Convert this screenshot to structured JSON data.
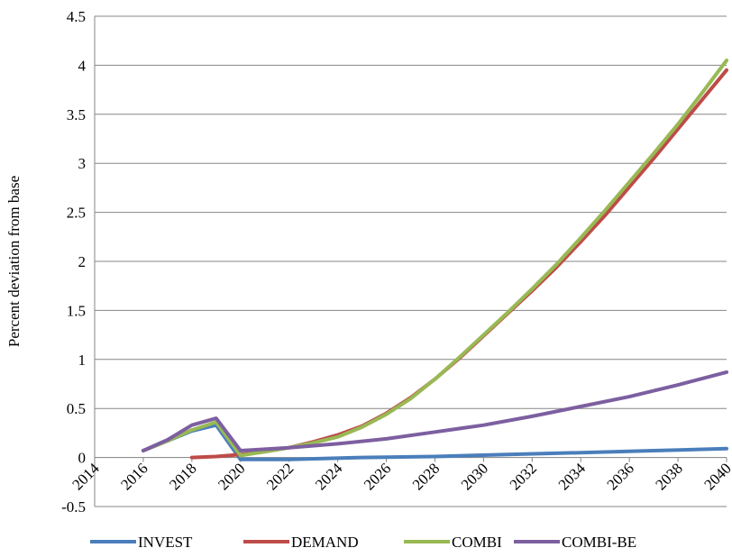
{
  "chart_data": {
    "type": "line",
    "title": "",
    "xlabel": "",
    "ylabel": "Percent deviation from base",
    "xlim": [
      2014,
      2040
    ],
    "ylim": [
      -0.5,
      4.5
    ],
    "x_ticks": [
      "2014",
      "2016",
      "2018",
      "2020",
      "2022",
      "2024",
      "2026",
      "2028",
      "2030",
      "2032",
      "2034",
      "2036",
      "2038",
      "2040"
    ],
    "y_ticks": [
      "-0.5",
      "0",
      "0.5",
      "1",
      "1.5",
      "2",
      "2.5",
      "3",
      "3.5",
      "4",
      "4.5"
    ],
    "grid": "horizontal",
    "legend_position": "bottom",
    "series": [
      {
        "name": "INVEST",
        "color": "#4a7ebb",
        "x": [
          2016,
          2017,
          2018,
          2019,
          2020,
          2022,
          2025,
          2028,
          2031,
          2034,
          2037,
          2040
        ],
        "y": [
          0.07,
          0.17,
          0.27,
          0.33,
          -0.02,
          -0.02,
          0.0,
          0.01,
          0.03,
          0.05,
          0.07,
          0.09
        ]
      },
      {
        "name": "DEMAND",
        "color": "#be4b48",
        "x": [
          2018,
          2019,
          2020,
          2021,
          2022,
          2023,
          2024,
          2025,
          2026,
          2027,
          2028,
          2029,
          2030,
          2031,
          2032,
          2033,
          2034,
          2035,
          2036,
          2037,
          2038,
          2039,
          2040
        ],
        "y": [
          0.0,
          0.01,
          0.03,
          0.06,
          0.1,
          0.16,
          0.23,
          0.32,
          0.45,
          0.61,
          0.8,
          1.01,
          1.24,
          1.47,
          1.7,
          1.94,
          2.2,
          2.47,
          2.76,
          3.05,
          3.35,
          3.65,
          3.95
        ]
      },
      {
        "name": "COMBI",
        "color": "#98b954",
        "x": [
          2016,
          2017,
          2018,
          2019,
          2020,
          2021,
          2022,
          2023,
          2024,
          2025,
          2026,
          2027,
          2028,
          2029,
          2030,
          2031,
          2032,
          2033,
          2034,
          2035,
          2036,
          2037,
          2038,
          2039,
          2040
        ],
        "y": [
          0.07,
          0.17,
          0.28,
          0.36,
          0.02,
          0.06,
          0.1,
          0.15,
          0.21,
          0.31,
          0.44,
          0.6,
          0.8,
          1.02,
          1.25,
          1.48,
          1.72,
          1.97,
          2.24,
          2.52,
          2.81,
          3.1,
          3.4,
          3.72,
          4.05
        ]
      },
      {
        "name": "COMBI-BE",
        "color": "#7d5fa0",
        "x": [
          2016,
          2017,
          2018,
          2019,
          2020,
          2022,
          2024,
          2026,
          2028,
          2030,
          2032,
          2034,
          2036,
          2038,
          2040
        ],
        "y": [
          0.07,
          0.18,
          0.33,
          0.4,
          0.07,
          0.1,
          0.14,
          0.19,
          0.26,
          0.33,
          0.42,
          0.52,
          0.62,
          0.74,
          0.87
        ]
      }
    ]
  }
}
